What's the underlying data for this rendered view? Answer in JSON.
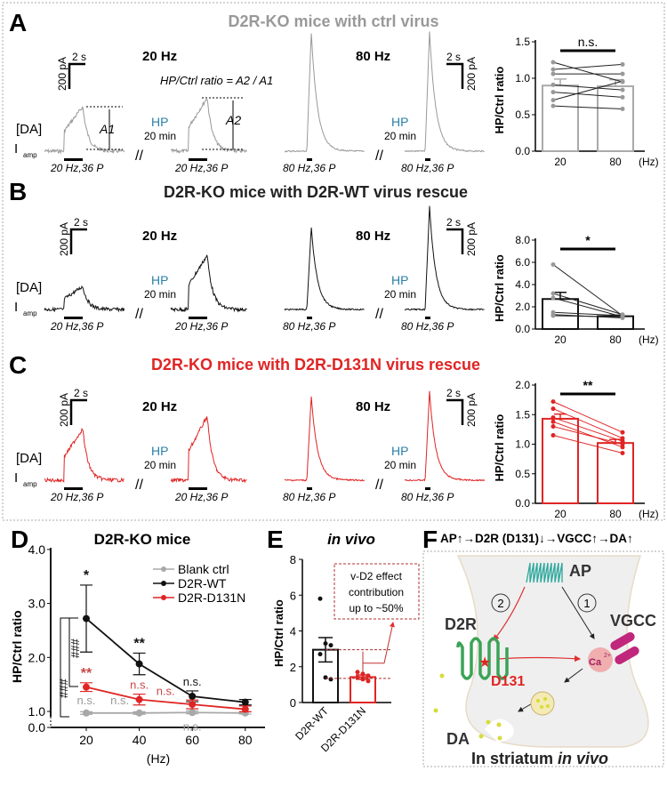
{
  "panels": {
    "A": {
      "letter": "A",
      "title": "D2R-KO mice with ctrl virus",
      "color": "#999999",
      "formula": "HP/Ctrl ratio = A2 / A1",
      "a1": "A1",
      "a2": "A2"
    },
    "B": {
      "letter": "B",
      "title": "D2R-KO mice with D2R-WT virus rescue",
      "color": "#222222"
    },
    "C": {
      "letter": "C",
      "title": "D2R-KO mice with D2R-D131N virus rescue",
      "color": "#e02424"
    },
    "D": {
      "letter": "D",
      "title": "D2R-KO mice"
    },
    "E": {
      "letter": "E",
      "title": "in vivo",
      "annotation": [
        "v-D2 effect",
        "contribution",
        "up to ~50%"
      ]
    },
    "F": {
      "letter": "F",
      "title": "AP↑→D2R (D131)↓→VGCC↑→DA↑",
      "labels": {
        "ap": "AP",
        "d2r": "D2R",
        "vgcc": "VGCC",
        "d131": "D131",
        "ca": "Ca",
        "ca_sup": "2+",
        "da": "DA",
        "step1": "1",
        "step2": "2"
      },
      "caption_plain": "In striatum ",
      "caption_italic": "in vivo",
      "colors": {
        "ap": "#2aa79b",
        "d2r": "#3aa356",
        "vgcc": "#c0267c",
        "arrow": "#e03030",
        "vesicle": "#d6dc3a"
      }
    }
  },
  "traces": {
    "freq20": "20 Hz",
    "freq80": "80 Hz",
    "hp": "HP",
    "hp_time": "20 min",
    "da": "[DA]",
    "iamp": "I",
    "iamp_sub": "amp",
    "stim20": "20 Hz,36 P",
    "stim80": "80 Hz,36 P",
    "scale_time": "2 s",
    "scale_current": "200 pA",
    "break": "//"
  },
  "chart_data": [
    {
      "panel": "A",
      "type": "bar",
      "categories": [
        "20",
        "80"
      ],
      "xunit": "(Hz)",
      "ylabel": "HP/Ctrl ratio",
      "ylim": [
        0,
        1.5
      ],
      "yticks": [
        "0.0",
        "0.5",
        "1.0",
        "1.5"
      ],
      "values": [
        0.9,
        0.89
      ],
      "errors": [
        0.09,
        0.09
      ],
      "paired": [
        [
          1.22,
          0.95
        ],
        [
          1.12,
          1.19
        ],
        [
          1.06,
          1.06
        ],
        [
          0.91,
          0.84
        ],
        [
          0.81,
          0.74
        ],
        [
          0.7,
          0.96
        ],
        [
          0.62,
          0.58
        ]
      ],
      "significance": "n.s."
    },
    {
      "panel": "B",
      "type": "bar",
      "categories": [
        "20",
        "80"
      ],
      "xunit": "(Hz)",
      "ylabel": "HP/Ctrl ratio",
      "ylim": [
        0,
        8
      ],
      "yticks": [
        "0.0",
        "2.0",
        "4.0",
        "6.0",
        "8.0"
      ],
      "values": [
        2.7,
        1.15
      ],
      "errors": [
        0.6,
        0.1
      ],
      "paired": [
        [
          5.8,
          1.2
        ],
        [
          3.2,
          1.3
        ],
        [
          2.8,
          1.1
        ],
        [
          1.5,
          1.2
        ],
        [
          1.3,
          1.0
        ],
        [
          1.2,
          1.1
        ]
      ],
      "significance": "*"
    },
    {
      "panel": "C",
      "type": "bar",
      "categories": [
        "20",
        "80"
      ],
      "xunit": "(Hz)",
      "ylabel": "HP/Ctrl ratio",
      "ylim": [
        0,
        2.0
      ],
      "yticks": [
        "0.0",
        "0.5",
        "1.0",
        "1.5",
        "2.0"
      ],
      "values": [
        1.43,
        1.02
      ],
      "errors": [
        0.08,
        0.06
      ],
      "paired": [
        [
          1.72,
          1.2
        ],
        [
          1.6,
          1.1
        ],
        [
          1.45,
          1.05
        ],
        [
          1.38,
          0.95
        ],
        [
          1.3,
          1.0
        ],
        [
          1.15,
          0.85
        ]
      ],
      "significance": "**"
    },
    {
      "panel": "D",
      "type": "line",
      "title": "D2R-KO mice",
      "x": [
        20,
        40,
        60,
        80
      ],
      "xlabel": "(Hz)",
      "ylabel": "HP/Ctrl ratio",
      "ylim": [
        0,
        4.0
      ],
      "yticks": [
        "0.0",
        "1.0",
        "2.0",
        "3.0",
        "4.0"
      ],
      "xticks": [
        "20",
        "40",
        "60",
        "80"
      ],
      "legend": "top-right",
      "series": [
        {
          "name": "Blank ctrl",
          "color": "#a8a8a8",
          "values": [
            0.9,
            0.9,
            0.93,
            0.9
          ],
          "errors": [
            0.08,
            0.08,
            0.08,
            0.07
          ],
          "marks": [
            "n.s.",
            "n.s.",
            "n.s.",
            ""
          ]
        },
        {
          "name": "D2R-WT",
          "color": "#111111",
          "values": [
            2.72,
            1.88,
            1.28,
            1.17
          ],
          "errors": [
            0.62,
            0.2,
            0.1,
            0.05
          ],
          "marks": [
            "*",
            "**",
            "n.s.",
            ""
          ]
        },
        {
          "name": "D2R-D131N",
          "color": "#e02424",
          "values": [
            1.45,
            1.22,
            1.13,
            1.04
          ],
          "errors": [
            0.08,
            0.1,
            0.08,
            0.06
          ],
          "marks": [
            "**",
            "n.s.",
            "n.s.",
            ""
          ]
        }
      ],
      "brackets": [
        "###",
        "###"
      ]
    },
    {
      "panel": "E",
      "type": "bar",
      "title": "in vivo",
      "categories": [
        "D2R-WT",
        "D2R-D131N"
      ],
      "ylabel": "HP/Ctrl ratio",
      "ylim": [
        0,
        8
      ],
      "yticks": [
        "0",
        "2",
        "4",
        "6",
        "8"
      ],
      "values": [
        2.95,
        1.42
      ],
      "errors": [
        0.68,
        0.12
      ],
      "colors": [
        "#111111",
        "#e02424"
      ],
      "points": [
        [
          5.8,
          3.3,
          3.2,
          2.7,
          1.4,
          1.3
        ],
        [
          1.7,
          1.6,
          1.5,
          1.4,
          1.3,
          1.2
        ]
      ]
    }
  ]
}
